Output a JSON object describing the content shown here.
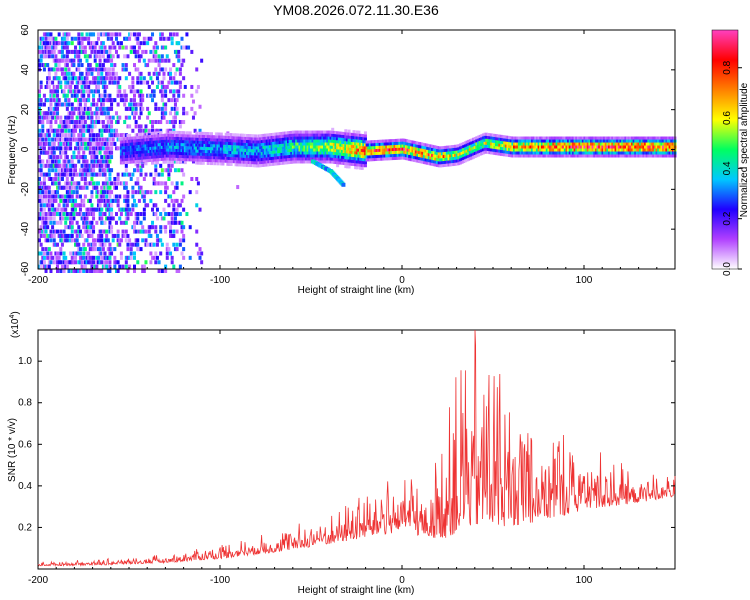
{
  "title": "YM08.2026.072.11.30.E36",
  "chart_data": [
    {
      "type": "heatmap",
      "name": "spectrogram",
      "xlabel": "Height of straight line (km)",
      "ylabel": "Frequency (Hz)",
      "xlim": [
        -200,
        150
      ],
      "ylim": [
        -60,
        60
      ],
      "xticks": [
        -200,
        -100,
        0,
        100
      ],
      "yticks": [
        -60,
        -40,
        -20,
        0,
        20,
        40,
        60
      ],
      "x_tick_labels": [
        "-200",
        "-100",
        "0",
        "100"
      ],
      "y_tick_labels": [
        "-60",
        "-40",
        "-20",
        "0",
        "20",
        "40",
        "60"
      ],
      "colorbar": {
        "label": "Normalized spectral amplitude",
        "range": [
          0,
          0.95
        ],
        "ticks": [
          0,
          0.2,
          0.4,
          0.6,
          0.8
        ],
        "tick_labels": [
          "0.0",
          "0.2",
          "0.4",
          "0.6",
          "0.8"
        ],
        "colors": [
          "#ffffff",
          "#b040ff",
          "#2000ff",
          "#00c8ff",
          "#00ff60",
          "#ffff00",
          "#ff8000",
          "#ff0000",
          "#ff40c0"
        ]
      },
      "ridge": [
        {
          "x": -155,
          "f": 0,
          "amp": 0.3
        },
        {
          "x": -130,
          "f": 2,
          "amp": 0.35
        },
        {
          "x": -100,
          "f": 1,
          "amp": 0.38
        },
        {
          "x": -80,
          "f": 0,
          "amp": 0.4
        },
        {
          "x": -60,
          "f": 2,
          "amp": 0.5
        },
        {
          "x": -40,
          "f": 2,
          "amp": 0.6
        },
        {
          "x": -20,
          "f": 0,
          "amp": 0.8
        },
        {
          "x": 0,
          "f": 1,
          "amp": 0.85
        },
        {
          "x": 20,
          "f": -3,
          "amp": 0.75
        },
        {
          "x": 30,
          "f": -2,
          "amp": 0.6
        },
        {
          "x": 45,
          "f": 4,
          "amp": 0.6
        },
        {
          "x": 60,
          "f": 2,
          "amp": 0.75
        },
        {
          "x": 80,
          "f": 2,
          "amp": 0.85
        },
        {
          "x": 100,
          "f": 2,
          "amp": 0.9
        },
        {
          "x": 120,
          "f": 2,
          "amp": 0.9
        },
        {
          "x": 150,
          "f": 2,
          "amp": 0.9
        }
      ],
      "branch": [
        {
          "x": -50,
          "f": -5
        },
        {
          "x": -40,
          "f": -10
        },
        {
          "x": -33,
          "f": -17
        }
      ],
      "noise_region": {
        "x_from": -200,
        "x_to": -120,
        "amp": 0.3
      }
    },
    {
      "type": "line",
      "name": "snr",
      "xlabel": "Height of straight line (km)",
      "ylabel": "SNR (10 * v/v)",
      "scale_note": "(x10",
      "scale_exp": "4",
      "scale_close": ")",
      "xlim": [
        -200,
        150
      ],
      "ylim": [
        0,
        1.15
      ],
      "xticks": [
        -200,
        -100,
        0,
        100
      ],
      "yticks": [
        0.2,
        0.4,
        0.6,
        0.8,
        1.0
      ],
      "x_tick_labels": [
        "-200",
        "-100",
        "0",
        "100"
      ],
      "y_tick_labels": [
        "0.2",
        "0.4",
        "0.6",
        "0.8",
        "1.0"
      ],
      "color": "#ee3333",
      "envelope": [
        {
          "x": -200,
          "base": 0.015,
          "amp": 0.02
        },
        {
          "x": -160,
          "base": 0.02,
          "amp": 0.03
        },
        {
          "x": -130,
          "base": 0.03,
          "amp": 0.04
        },
        {
          "x": -100,
          "base": 0.05,
          "amp": 0.07
        },
        {
          "x": -70,
          "base": 0.08,
          "amp": 0.1
        },
        {
          "x": -40,
          "base": 0.12,
          "amp": 0.15
        },
        {
          "x": -20,
          "base": 0.15,
          "amp": 0.22
        },
        {
          "x": 0,
          "base": 0.18,
          "amp": 0.3
        },
        {
          "x": 15,
          "base": 0.15,
          "amp": 0.3
        },
        {
          "x": 25,
          "base": 0.15,
          "amp": 0.6
        },
        {
          "x": 35,
          "base": 0.2,
          "amp": 0.95
        },
        {
          "x": 50,
          "base": 0.2,
          "amp": 0.85
        },
        {
          "x": 70,
          "base": 0.22,
          "amp": 0.6
        },
        {
          "x": 100,
          "base": 0.28,
          "amp": 0.35
        },
        {
          "x": 130,
          "base": 0.32,
          "amp": 0.15
        },
        {
          "x": 150,
          "base": 0.35,
          "amp": 0.1
        }
      ],
      "peak": {
        "x": 40,
        "y": 1.15
      }
    }
  ]
}
